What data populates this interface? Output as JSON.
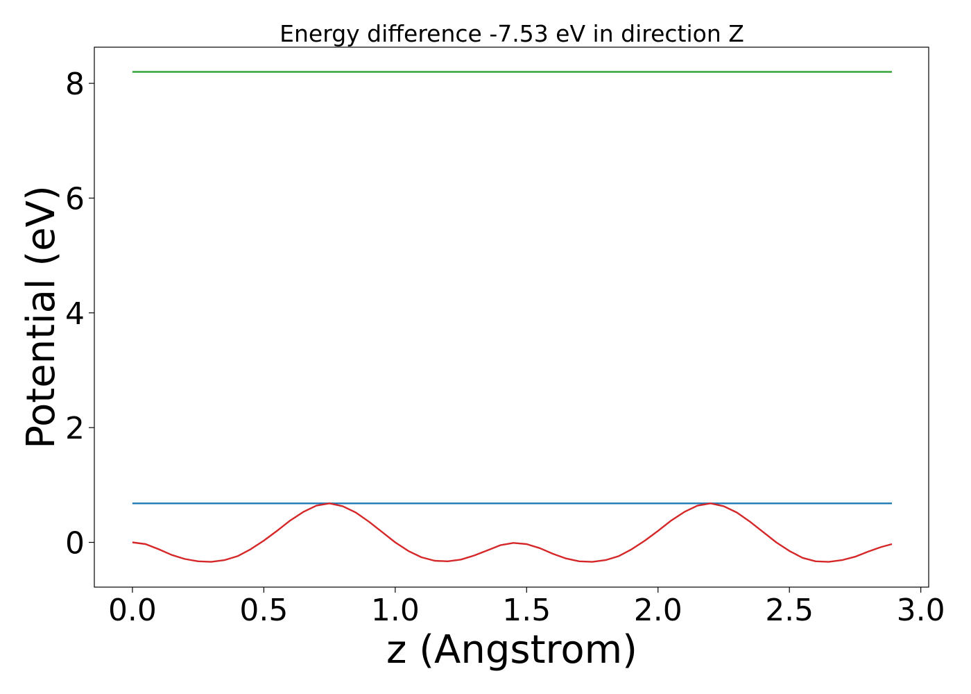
{
  "chart_data": {
    "type": "line",
    "title": "Energy difference -7.53 eV in direction Z",
    "xlabel": "z (Angstrom)",
    "ylabel": "Potential (eV)",
    "xlim": [
      -0.145,
      3.03
    ],
    "ylim": [
      -0.78,
      8.63
    ],
    "grid": false,
    "legend": "none",
    "x_ticks": [
      {
        "value": 0.0,
        "label": "0.0"
      },
      {
        "value": 0.5,
        "label": "0.5"
      },
      {
        "value": 1.0,
        "label": "1.0"
      },
      {
        "value": 1.5,
        "label": "1.5"
      },
      {
        "value": 2.0,
        "label": "2.0"
      },
      {
        "value": 2.5,
        "label": "2.5"
      },
      {
        "value": 3.0,
        "label": "3.0"
      }
    ],
    "y_ticks": [
      {
        "value": 0,
        "label": "0"
      },
      {
        "value": 2,
        "label": "2"
      },
      {
        "value": 4,
        "label": "4"
      },
      {
        "value": 6,
        "label": "6"
      },
      {
        "value": 8,
        "label": "8"
      }
    ],
    "series": [
      {
        "color": "#2ca02c",
        "x": [
          0.0,
          2.89
        ],
        "y": [
          8.2,
          8.2
        ]
      },
      {
        "color": "#1f77b4",
        "x": [
          0.0,
          2.89
        ],
        "y": [
          0.68,
          0.68
        ]
      },
      {
        "color": "#d62728",
        "x": [
          0.0,
          0.05,
          0.1,
          0.15,
          0.2,
          0.25,
          0.3,
          0.35,
          0.4,
          0.45,
          0.5,
          0.55,
          0.6,
          0.65,
          0.7,
          0.75,
          0.8,
          0.85,
          0.9,
          0.95,
          1.0,
          1.05,
          1.1,
          1.15,
          1.2,
          1.25,
          1.3,
          1.35,
          1.4,
          1.45,
          1.5,
          1.55,
          1.6,
          1.65,
          1.7,
          1.75,
          1.8,
          1.85,
          1.9,
          1.95,
          2.0,
          2.05,
          2.1,
          2.15,
          2.2,
          2.25,
          2.3,
          2.35,
          2.4,
          2.45,
          2.5,
          2.55,
          2.6,
          2.65,
          2.7,
          2.75,
          2.8,
          2.85,
          2.89
        ],
        "y": [
          0.0,
          -0.03,
          -0.12,
          -0.22,
          -0.29,
          -0.33,
          -0.34,
          -0.31,
          -0.24,
          -0.12,
          0.03,
          0.2,
          0.38,
          0.53,
          0.64,
          0.68,
          0.63,
          0.52,
          0.36,
          0.18,
          0.0,
          -0.15,
          -0.26,
          -0.32,
          -0.33,
          -0.3,
          -0.23,
          -0.14,
          -0.05,
          -0.01,
          -0.03,
          -0.1,
          -0.2,
          -0.28,
          -0.33,
          -0.34,
          -0.31,
          -0.24,
          -0.12,
          0.03,
          0.2,
          0.38,
          0.53,
          0.64,
          0.68,
          0.63,
          0.52,
          0.36,
          0.18,
          0.0,
          -0.15,
          -0.27,
          -0.33,
          -0.34,
          -0.31,
          -0.25,
          -0.16,
          -0.08,
          -0.03
        ]
      }
    ]
  }
}
